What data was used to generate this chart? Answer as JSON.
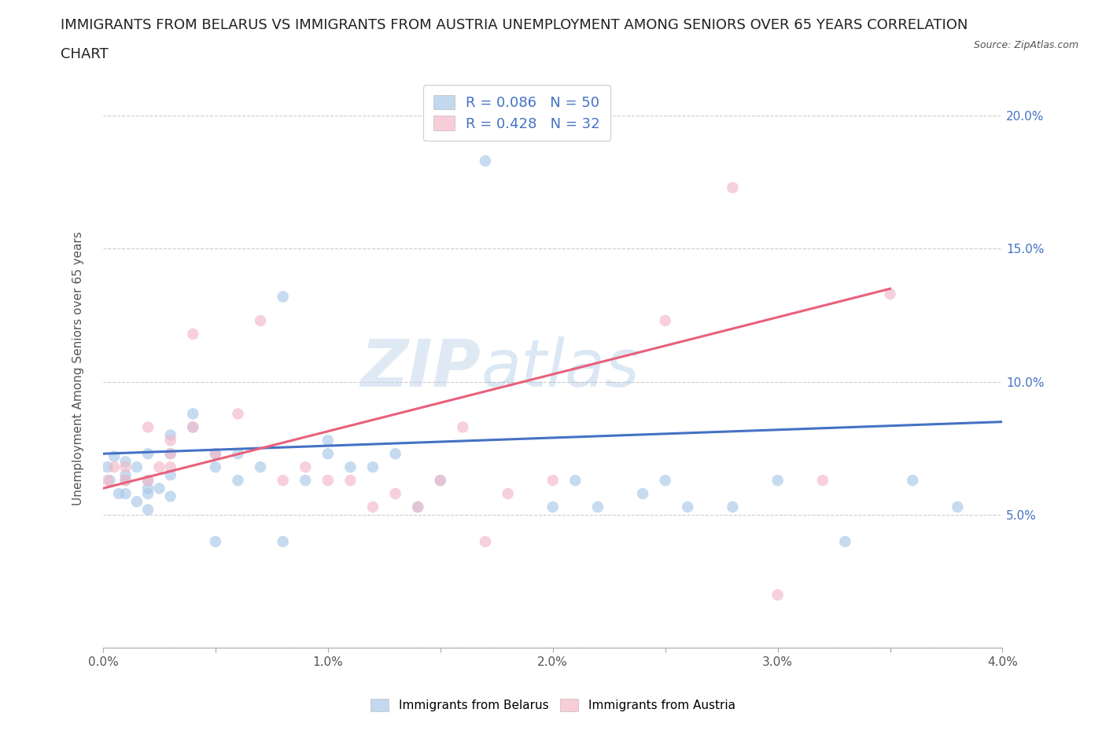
{
  "title_line1": "IMMIGRANTS FROM BELARUS VS IMMIGRANTS FROM AUSTRIA UNEMPLOYMENT AMONG SENIORS OVER 65 YEARS CORRELATION",
  "title_line2": "CHART",
  "source": "Source: ZipAtlas.com",
  "ylabel": "Unemployment Among Seniors over 65 years",
  "watermark_part1": "ZIP",
  "watermark_part2": "atlas",
  "legend_entries": [
    {
      "label": "Immigrants from Belarus",
      "color": "#a8c8e8",
      "R": 0.086,
      "N": 50
    },
    {
      "label": "Immigrants from Austria",
      "color": "#f4b8c8",
      "R": 0.428,
      "N": 32
    }
  ],
  "xlim": [
    0.0,
    0.04
  ],
  "ylim": [
    0.0,
    0.21
  ],
  "xticks": [
    0.0,
    0.005,
    0.01,
    0.015,
    0.02,
    0.025,
    0.03,
    0.035,
    0.04
  ],
  "xtick_labels": [
    "0.0%",
    "",
    "1.0%",
    "",
    "2.0%",
    "",
    "3.0%",
    "",
    "4.0%"
  ],
  "yticks": [
    0.0,
    0.05,
    0.1,
    0.15,
    0.2
  ],
  "ytick_labels_right": [
    "",
    "5.0%",
    "10.0%",
    "15.0%",
    "20.0%"
  ],
  "blue_scatter_x": [
    0.0002,
    0.0003,
    0.0005,
    0.0007,
    0.001,
    0.001,
    0.001,
    0.001,
    0.0015,
    0.0015,
    0.002,
    0.002,
    0.002,
    0.002,
    0.002,
    0.0025,
    0.003,
    0.003,
    0.003,
    0.003,
    0.004,
    0.004,
    0.005,
    0.005,
    0.005,
    0.006,
    0.006,
    0.007,
    0.008,
    0.008,
    0.009,
    0.01,
    0.01,
    0.011,
    0.012,
    0.013,
    0.014,
    0.015,
    0.017,
    0.02,
    0.021,
    0.022,
    0.024,
    0.025,
    0.026,
    0.028,
    0.03,
    0.033,
    0.036,
    0.038
  ],
  "blue_scatter_y": [
    0.068,
    0.063,
    0.072,
    0.058,
    0.065,
    0.07,
    0.058,
    0.063,
    0.068,
    0.055,
    0.063,
    0.058,
    0.073,
    0.052,
    0.06,
    0.06,
    0.065,
    0.073,
    0.08,
    0.057,
    0.088,
    0.083,
    0.073,
    0.068,
    0.04,
    0.073,
    0.063,
    0.068,
    0.132,
    0.04,
    0.063,
    0.078,
    0.073,
    0.068,
    0.068,
    0.073,
    0.053,
    0.063,
    0.183,
    0.053,
    0.063,
    0.053,
    0.058,
    0.063,
    0.053,
    0.053,
    0.063,
    0.04,
    0.063,
    0.053
  ],
  "pink_scatter_x": [
    0.0002,
    0.0005,
    0.001,
    0.001,
    0.002,
    0.002,
    0.0025,
    0.003,
    0.003,
    0.003,
    0.004,
    0.004,
    0.005,
    0.006,
    0.007,
    0.008,
    0.009,
    0.01,
    0.011,
    0.012,
    0.013,
    0.014,
    0.015,
    0.016,
    0.017,
    0.018,
    0.02,
    0.025,
    0.028,
    0.03,
    0.032,
    0.035
  ],
  "pink_scatter_y": [
    0.063,
    0.068,
    0.063,
    0.068,
    0.063,
    0.083,
    0.068,
    0.073,
    0.068,
    0.078,
    0.118,
    0.083,
    0.073,
    0.088,
    0.123,
    0.063,
    0.068,
    0.063,
    0.063,
    0.053,
    0.058,
    0.053,
    0.063,
    0.083,
    0.04,
    0.058,
    0.063,
    0.123,
    0.173,
    0.02,
    0.063,
    0.133
  ],
  "blue_line_x": [
    0.0,
    0.04
  ],
  "blue_line_y": [
    0.073,
    0.085
  ],
  "pink_line_x": [
    0.0,
    0.035
  ],
  "pink_line_y": [
    0.06,
    0.135
  ],
  "blue_color": "#a8c8e8",
  "pink_color": "#f4b8c8",
  "blue_line_color": "#4472c4",
  "pink_line_color": "#e8607a",
  "grid_color": "#cccccc",
  "background_color": "#ffffff",
  "title_fontsize": 13,
  "axis_label_fontsize": 11,
  "tick_fontsize": 11,
  "legend_R_N_color": "#4472c4",
  "legend_fontsize": 13
}
